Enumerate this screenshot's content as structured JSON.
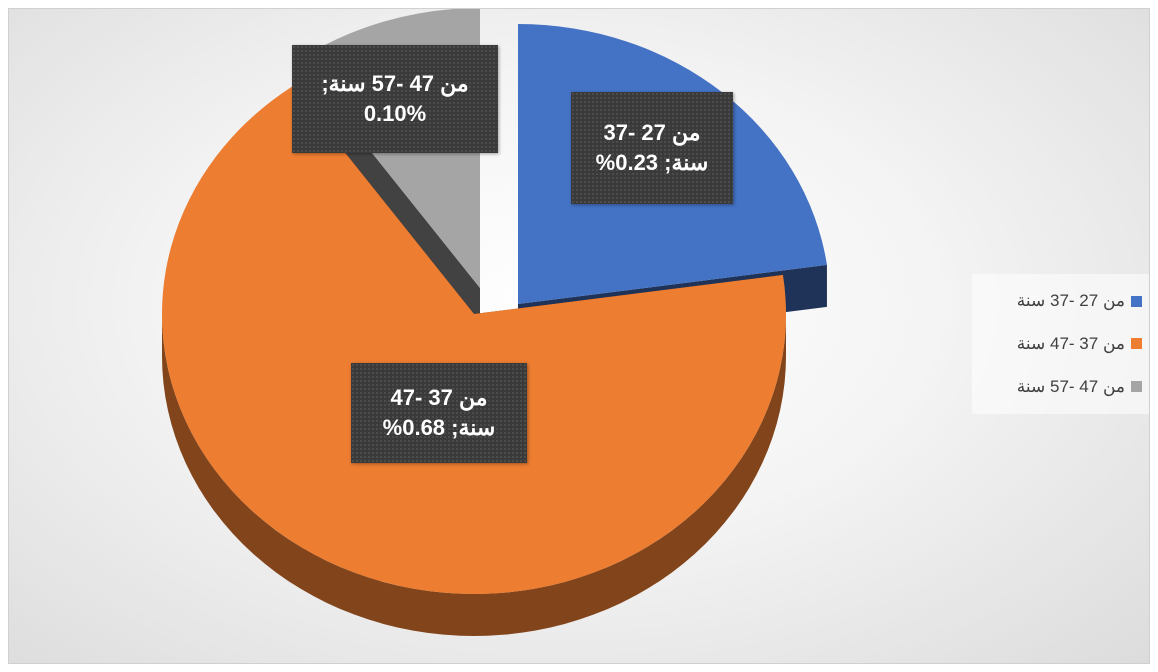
{
  "chart_data": {
    "type": "pie",
    "title": "",
    "categories": [
      "من 27 -37 سنة",
      "من 37 -47 سنة",
      "من 47 -57 سنة"
    ],
    "values": [
      0.23,
      0.68,
      0.1
    ],
    "series": [
      {
        "name": "",
        "values": [
          0.23,
          0.68,
          0.1
        ]
      }
    ],
    "colors": [
      "#4472C4",
      "#ED7D31",
      "#A5A5A5"
    ],
    "three_d": true,
    "exploded": true,
    "legend_position": "right",
    "data_labels": [
      {
        "category": "من 27 -37 سنة",
        "line1": "من 27 -37",
        "line2": "سنة; 0.23%"
      },
      {
        "category": "من 37 -47 سنة",
        "line1": "من 37 -47",
        "line2": "سنة; 0.68%"
      },
      {
        "category": "من 47 -57 سنة",
        "line1": "من 47 -57 سنة;",
        "line2": "0.10%"
      }
    ]
  }
}
